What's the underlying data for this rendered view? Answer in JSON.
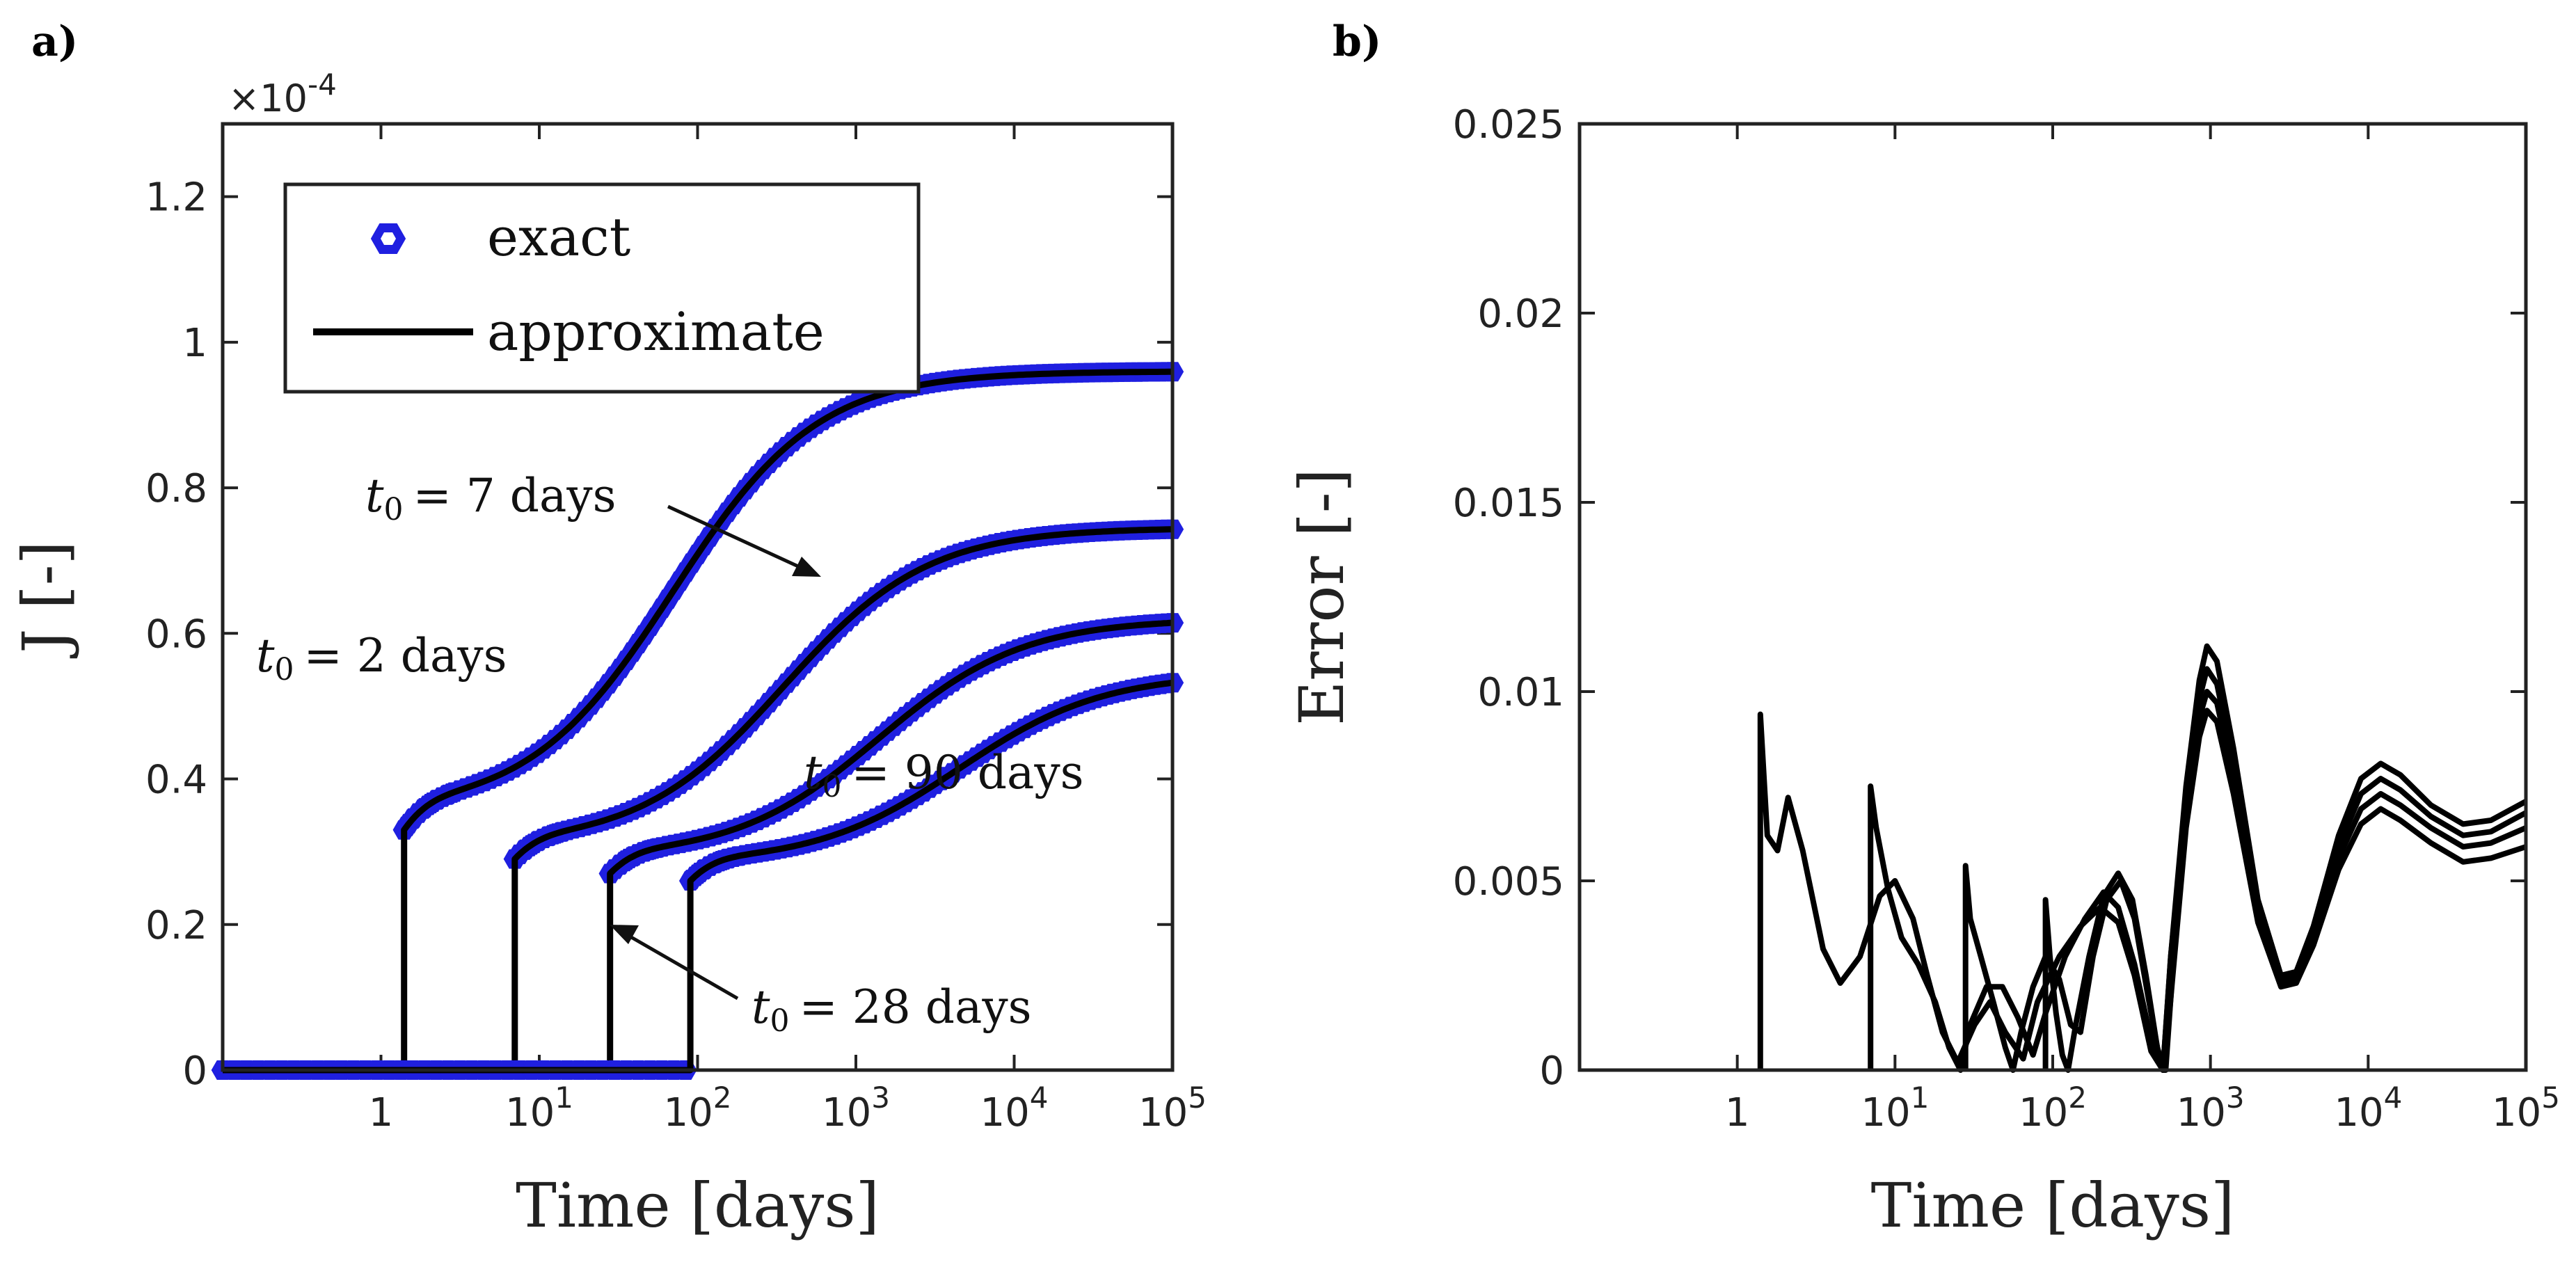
{
  "chart_data": [
    {
      "panel": "a)",
      "type": "line",
      "xlabel": "Time [days]",
      "ylabel": "J [-]",
      "xscale": "log",
      "xlim": [
        0.1,
        100000
      ],
      "ylim": [
        0,
        1.3
      ],
      "y_multiplier_label": "×10^-4",
      "y_multiplier_base": "×10",
      "y_multiplier_exp": "-4",
      "xticks": [
        {
          "value": 1,
          "base": "1",
          "exp": ""
        },
        {
          "value": 10,
          "base": "10",
          "exp": "1"
        },
        {
          "value": 100,
          "base": "10",
          "exp": "2"
        },
        {
          "value": 1000,
          "base": "10",
          "exp": "3"
        },
        {
          "value": 10000,
          "base": "10",
          "exp": "4"
        },
        {
          "value": 100000,
          "base": "10",
          "exp": "5"
        }
      ],
      "yticks": [
        "0",
        "0.2",
        "0.4",
        "0.6",
        "0.8",
        "1",
        "1.2"
      ],
      "legend": {
        "position": "top-left",
        "entries": [
          "exact",
          "approximate"
        ]
      },
      "series_style": {
        "exact": {
          "color": "#1f1fe0",
          "marker": "hexagon"
        },
        "approximate": {
          "color": "#000000"
        }
      },
      "curves": [
        {
          "t0": 2,
          "label": "t0 = 2 days",
          "jump_x": 1.4,
          "j_start": 0.33,
          "j_knee": 0.37,
          "j_mid": 0.58,
          "j_final": 0.96
        },
        {
          "t0": 7,
          "label": "t0 = 7 days",
          "jump_x": 7,
          "j_start": 0.29,
          "j_knee": 0.32,
          "j_mid": 0.52,
          "j_final": 0.745
        },
        {
          "t0": 28,
          "label": "t0 = 28 days",
          "jump_x": 28,
          "j_start": 0.27,
          "j_knee": 0.3,
          "j_mid": 0.47,
          "j_final": 0.62
        },
        {
          "t0": 90,
          "label": "t0 = 90 days",
          "jump_x": 90,
          "j_start": 0.26,
          "j_knee": 0.29,
          "j_mid": 0.44,
          "j_final": 0.545
        }
      ],
      "annotations": [
        {
          "sub": "0",
          "rest": "= 2 days",
          "arrow": false
        },
        {
          "sub": "0",
          "rest": "= 7 days",
          "arrow": true
        },
        {
          "sub": "0",
          "rest": "= 90 days",
          "arrow": false
        },
        {
          "sub": "0",
          "rest": "= 28 days",
          "arrow": true
        }
      ]
    },
    {
      "panel": "b)",
      "type": "line",
      "xlabel": "Time [days]",
      "ylabel": "Error [-]",
      "xscale": "log",
      "xlim": [
        0.1,
        100000
      ],
      "ylim": [
        0,
        0.025
      ],
      "xticks": [
        {
          "value": 1,
          "base": "1",
          "exp": ""
        },
        {
          "value": 10,
          "base": "10",
          "exp": "1"
        },
        {
          "value": 100,
          "base": "10",
          "exp": "2"
        },
        {
          "value": 1000,
          "base": "10",
          "exp": "3"
        },
        {
          "value": 10000,
          "base": "10",
          "exp": "4"
        },
        {
          "value": 100000,
          "base": "10",
          "exp": "5"
        }
      ],
      "yticks": [
        "0",
        "0.005",
        "0.01",
        "0.015",
        "0.02",
        "0.025"
      ],
      "series": [
        {
          "t0": 2,
          "points": [
            [
              1.4,
              0.0094
            ],
            [
              1.55,
              0.0062
            ],
            [
              1.8,
              0.0058
            ],
            [
              2.1,
              0.0072
            ],
            [
              2.6,
              0.0058
            ],
            [
              3.5,
              0.0032
            ],
            [
              4.5,
              0.0023
            ],
            [
              6,
              0.003
            ],
            [
              8,
              0.0046
            ],
            [
              10,
              0.005
            ],
            [
              13,
              0.004
            ],
            [
              16,
              0.0025
            ],
            [
              20,
              0.001
            ],
            [
              25,
              0.0002
            ],
            [
              32,
              0.0012
            ],
            [
              40,
              0.0018
            ],
            [
              50,
              0.001
            ],
            [
              65,
              0.0003
            ],
            [
              80,
              0.0018
            ],
            [
              110,
              0.003
            ],
            [
              150,
              0.0038
            ],
            [
              200,
              0.0043
            ],
            [
              260,
              0.0039
            ],
            [
              330,
              0.0025
            ],
            [
              420,
              0.0005
            ],
            [
              500,
              0.0
            ],
            [
              560,
              0.003
            ],
            [
              700,
              0.0075
            ],
            [
              850,
              0.0103
            ],
            [
              950,
              0.0112
            ],
            [
              1100,
              0.0108
            ],
            [
              1400,
              0.0085
            ],
            [
              2000,
              0.0045
            ],
            [
              2800,
              0.0025
            ],
            [
              3500,
              0.0026
            ],
            [
              4500,
              0.0038
            ],
            [
              6500,
              0.0062
            ],
            [
              9000,
              0.0077
            ],
            [
              12000,
              0.0081
            ],
            [
              16000,
              0.0078
            ],
            [
              25000,
              0.007
            ],
            [
              40000,
              0.0065
            ],
            [
              60000,
              0.0066
            ],
            [
              100000,
              0.0071
            ]
          ]
        },
        {
          "t0": 7,
          "points": [
            [
              7,
              0.0075
            ],
            [
              7.6,
              0.0064
            ],
            [
              9,
              0.0048
            ],
            [
              11,
              0.0035
            ],
            [
              14,
              0.0028
            ],
            [
              18,
              0.0018
            ],
            [
              22,
              0.0006
            ],
            [
              26,
              0.0
            ],
            [
              30,
              0.0012
            ],
            [
              38,
              0.0022
            ],
            [
              48,
              0.0022
            ],
            [
              60,
              0.0014
            ],
            [
              75,
              0.0004
            ],
            [
              90,
              0.0015
            ],
            [
              120,
              0.003
            ],
            [
              160,
              0.004
            ],
            [
              210,
              0.0047
            ],
            [
              260,
              0.0043
            ],
            [
              330,
              0.0028
            ],
            [
              420,
              0.0008
            ],
            [
              500,
              0.0
            ],
            [
              560,
              0.003
            ],
            [
              700,
              0.0072
            ],
            [
              850,
              0.0098
            ],
            [
              950,
              0.0106
            ],
            [
              1100,
              0.0102
            ],
            [
              1400,
              0.0081
            ],
            [
              2000,
              0.0043
            ],
            [
              2800,
              0.0024
            ],
            [
              3500,
              0.0025
            ],
            [
              4500,
              0.0037
            ],
            [
              6500,
              0.0059
            ],
            [
              9000,
              0.0073
            ],
            [
              12000,
              0.0077
            ],
            [
              16000,
              0.0074
            ],
            [
              25000,
              0.0067
            ],
            [
              40000,
              0.0062
            ],
            [
              60000,
              0.0063
            ],
            [
              100000,
              0.0068
            ]
          ]
        },
        {
          "t0": 28,
          "points": [
            [
              28,
              0.0054
            ],
            [
              30,
              0.004
            ],
            [
              35,
              0.003
            ],
            [
              42,
              0.0018
            ],
            [
              50,
              0.0006
            ],
            [
              56,
              0.0
            ],
            [
              63,
              0.001
            ],
            [
              75,
              0.0022
            ],
            [
              90,
              0.003
            ],
            [
              110,
              0.0024
            ],
            [
              130,
              0.0012
            ],
            [
              150,
              0.001
            ],
            [
              180,
              0.003
            ],
            [
              220,
              0.0045
            ],
            [
              270,
              0.005
            ],
            [
              330,
              0.004
            ],
            [
              400,
              0.002
            ],
            [
              470,
              0.0004
            ],
            [
              520,
              0.0
            ],
            [
              580,
              0.0028
            ],
            [
              700,
              0.0068
            ],
            [
              850,
              0.0093
            ],
            [
              950,
              0.01
            ],
            [
              1100,
              0.0097
            ],
            [
              1400,
              0.0077
            ],
            [
              2000,
              0.0041
            ],
            [
              2800,
              0.0023
            ],
            [
              3500,
              0.0024
            ],
            [
              4500,
              0.0035
            ],
            [
              6500,
              0.0056
            ],
            [
              9000,
              0.0069
            ],
            [
              12000,
              0.0073
            ],
            [
              16000,
              0.007
            ],
            [
              25000,
              0.0064
            ],
            [
              40000,
              0.0059
            ],
            [
              60000,
              0.006
            ],
            [
              100000,
              0.0064
            ]
          ]
        },
        {
          "t0": 90,
          "points": [
            [
              90,
              0.0045
            ],
            [
              96,
              0.003
            ],
            [
              105,
              0.0015
            ],
            [
              115,
              0.0004
            ],
            [
              125,
              0.0
            ],
            [
              140,
              0.0012
            ],
            [
              170,
              0.003
            ],
            [
              210,
              0.0046
            ],
            [
              260,
              0.0052
            ],
            [
              320,
              0.0045
            ],
            [
              390,
              0.0025
            ],
            [
              460,
              0.0006
            ],
            [
              510,
              0.0
            ],
            [
              580,
              0.0026
            ],
            [
              700,
              0.0064
            ],
            [
              850,
              0.0088
            ],
            [
              950,
              0.0095
            ],
            [
              1100,
              0.0092
            ],
            [
              1400,
              0.0073
            ],
            [
              2000,
              0.0039
            ],
            [
              2800,
              0.0022
            ],
            [
              3500,
              0.0023
            ],
            [
              4500,
              0.0033
            ],
            [
              6500,
              0.0053
            ],
            [
              9000,
              0.0065
            ],
            [
              12000,
              0.0069
            ],
            [
              16000,
              0.0066
            ],
            [
              25000,
              0.006
            ],
            [
              40000,
              0.0055
            ],
            [
              60000,
              0.0056
            ],
            [
              100000,
              0.0059
            ]
          ]
        }
      ]
    }
  ]
}
